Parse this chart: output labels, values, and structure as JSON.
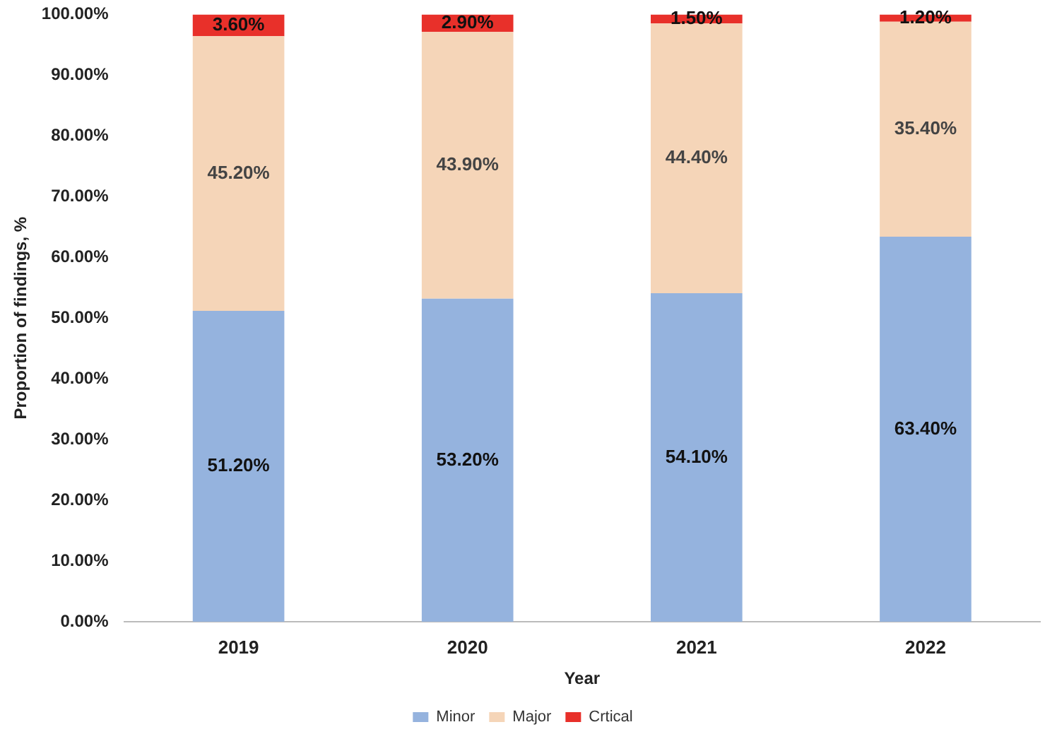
{
  "chart_data": {
    "type": "bar",
    "stacked": true,
    "xlabel": "Year",
    "ylabel": "Proportion of findings, %",
    "categories": [
      "2019",
      "2020",
      "2021",
      "2022"
    ],
    "ylim": [
      0,
      100
    ],
    "yticks": [
      {
        "value": 0,
        "label": "0.00%"
      },
      {
        "value": 10,
        "label": "10.00%"
      },
      {
        "value": 20,
        "label": "20.00%"
      },
      {
        "value": 30,
        "label": "30.00%"
      },
      {
        "value": 40,
        "label": "40.00%"
      },
      {
        "value": 50,
        "label": "50.00%"
      },
      {
        "value": 60,
        "label": "60.00%"
      },
      {
        "value": 70,
        "label": "70.00%"
      },
      {
        "value": 80,
        "label": "80.00%"
      },
      {
        "value": 90,
        "label": "90.00%"
      },
      {
        "value": 100,
        "label": "100.00%"
      }
    ],
    "grid": false,
    "legend": "bottom",
    "series": [
      {
        "name": "Minor",
        "color": "#95b3de",
        "values": [
          51.2,
          53.2,
          54.1,
          63.4
        ],
        "value_labels": [
          "51.20%",
          "53.20%",
          "54.10%",
          "63.40%"
        ]
      },
      {
        "name": "Major",
        "color": "#f5d5b8",
        "values": [
          45.2,
          43.9,
          44.4,
          35.4
        ],
        "value_labels": [
          "45.20%",
          "43.90%",
          "44.40%",
          "35.40%"
        ]
      },
      {
        "name": "Crtical",
        "color": "#e8302a",
        "values": [
          3.6,
          2.9,
          1.5,
          1.2
        ],
        "value_labels": [
          "3.60%",
          "2.90%",
          "1.50%",
          "1.20%"
        ]
      }
    ]
  }
}
